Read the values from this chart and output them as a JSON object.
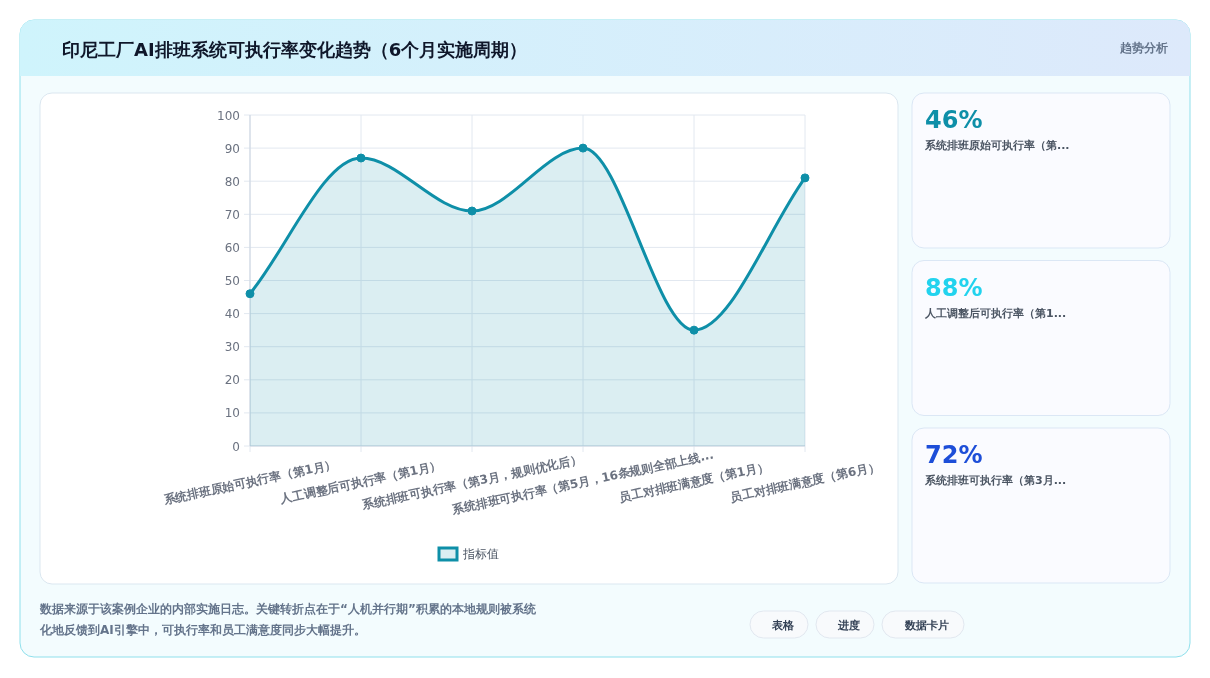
{
  "chart_data": {
    "type": "area",
    "title": "印尼工厂AI排班系统可执行率变化趋势（6个月实施周期）",
    "subtitle": "趋势分析",
    "categories": [
      "系统排班原始可执行率（第1月）",
      "人工调整后可执行率（第1月）",
      "系统排班可执行率（第3月，规则优化后）",
      "系统排班可执行率（第5月，16条规则全部上线...",
      "员工对排班满意度（第1月）",
      "员工对排班满意度（第6月）"
    ],
    "series": [
      {
        "name": "指标值",
        "color": "#0e8fa8",
        "values": [
          46,
          87,
          71,
          90,
          35,
          81
        ]
      }
    ],
    "ylim": [
      0,
      100
    ],
    "yticks": [
      0,
      10,
      20,
      30,
      40,
      50,
      60,
      70,
      80,
      90,
      100
    ],
    "grid": true,
    "legend": "bottom",
    "marker": "circle",
    "line_style": "solid",
    "annotations": [
      "数据来源于该案例企业的内部实施日志。关键转折点在于“人机并行期”积累的本地规则被系统化地反馈到AI引擎中，可执行率和员工满意度同步大幅提升。",
      "表格",
      "进度",
      "数据卡片",
      "46%",
      "系统排班原始可执行率（第...",
      "88%",
      "人工调整后可执行率（第1...",
      "72%",
      "系统排班可执行率（第3月..."
    ]
  }
}
